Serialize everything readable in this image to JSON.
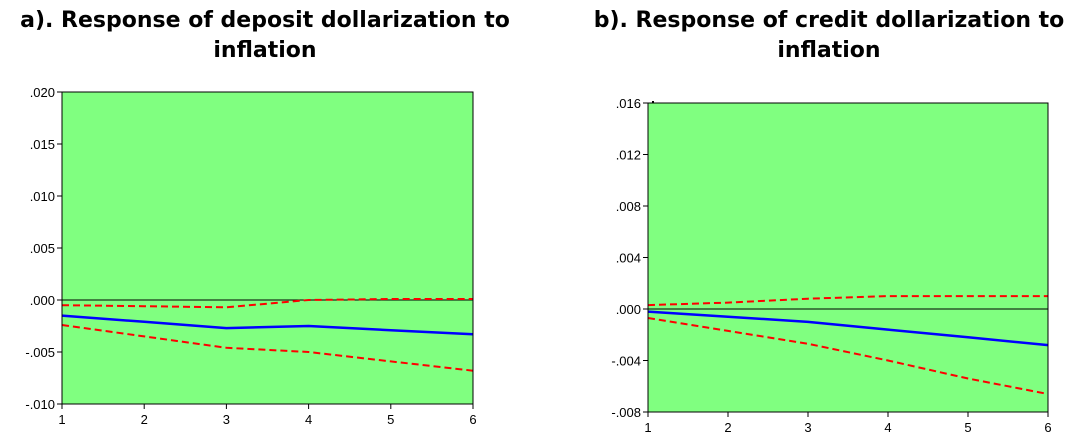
{
  "chart_data": [
    {
      "type": "line",
      "title": "a). Response of deposit dollarization to inflation",
      "xlabel": "",
      "ylabel": "",
      "x": [
        1,
        2,
        3,
        4,
        5,
        6
      ],
      "xlim": [
        1,
        6
      ],
      "ylim": [
        -0.01,
        0.02
      ],
      "y_ticks": [
        -0.01,
        -0.005,
        0.0,
        0.005,
        0.01,
        0.015,
        0.02
      ],
      "y_tick_labels": [
        "-.010",
        "-.005",
        ".000",
        ".005",
        ".010",
        ".015",
        ".020"
      ],
      "x_tick_labels": [
        "1",
        "2",
        "3",
        "4",
        "5",
        "6"
      ],
      "grid": false,
      "zero_line": true,
      "background_color": "#80ff80",
      "series": [
        {
          "role": "response",
          "style": "solid",
          "color": "#0000ff",
          "values": [
            -0.0015,
            -0.0021,
            -0.0027,
            -0.0025,
            -0.0029,
            -0.0033
          ]
        },
        {
          "role": "upper-band",
          "style": "dashed",
          "color": "#ff0000",
          "values": [
            -0.0005,
            -0.0006,
            -0.0007,
            0.0,
            0.0001,
            0.0001
          ]
        },
        {
          "role": "lower-band",
          "style": "dashed",
          "color": "#ff0000",
          "values": [
            -0.0024,
            -0.0035,
            -0.0046,
            -0.005,
            -0.0059,
            -0.0068
          ]
        }
      ]
    },
    {
      "type": "line",
      "title": "b). Response of credit dollarization to inflation",
      "xlabel": "",
      "ylabel": "",
      "x": [
        1,
        2,
        3,
        4,
        5,
        6
      ],
      "xlim": [
        1,
        6
      ],
      "ylim": [
        -0.008,
        0.016
      ],
      "y_ticks": [
        -0.008,
        -0.004,
        0.0,
        0.004,
        0.008,
        0.012,
        0.016
      ],
      "y_tick_labels": [
        "-.008",
        "-.004",
        ".000",
        ".004",
        ".008",
        ".012",
        ".016"
      ],
      "x_tick_labels": [
        "1",
        "2",
        "3",
        "4",
        "5",
        "6"
      ],
      "grid": false,
      "zero_line": true,
      "background_color": "#80ff80",
      "series": [
        {
          "role": "response",
          "style": "solid",
          "color": "#0000ff",
          "values": [
            -0.0002,
            -0.0006,
            -0.001,
            -0.0016,
            -0.0022,
            -0.0028
          ]
        },
        {
          "role": "upper-band",
          "style": "dashed",
          "color": "#ff0000",
          "values": [
            0.0003,
            0.0005,
            0.0008,
            0.001,
            0.001,
            0.001
          ]
        },
        {
          "role": "lower-band",
          "style": "dashed",
          "color": "#ff0000",
          "values": [
            -0.0007,
            -0.0017,
            -0.0027,
            -0.004,
            -0.0054,
            -0.0066
          ]
        }
      ]
    }
  ],
  "colors": {
    "plot_fill": "#80ff80",
    "response": "#0000ff",
    "band": "#ff0000",
    "axis": "#000000"
  }
}
